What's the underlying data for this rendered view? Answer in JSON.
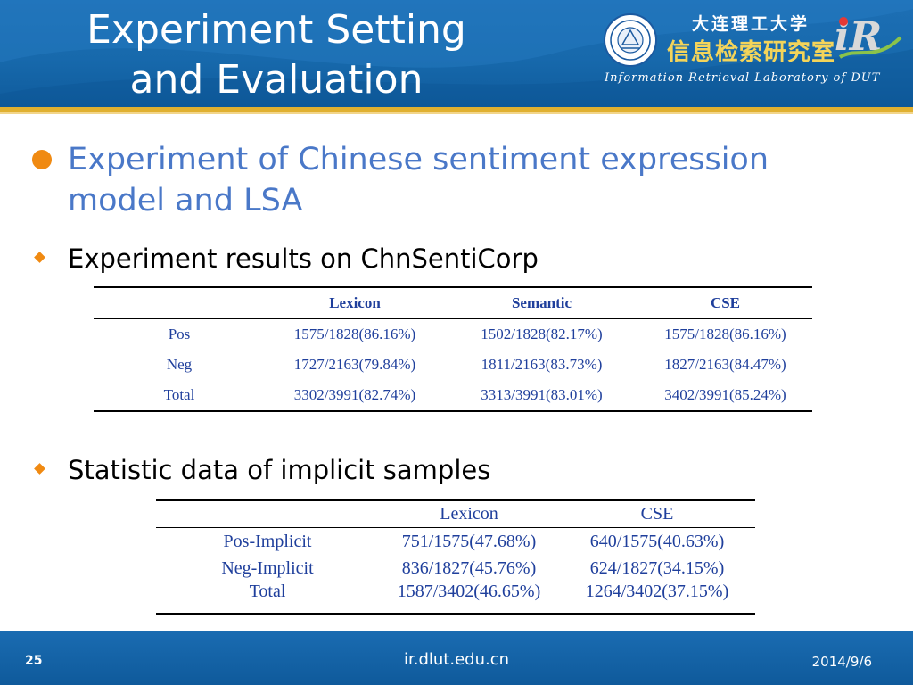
{
  "header": {
    "title_line1": "Experiment Setting",
    "title_line2": "and Evaluation",
    "university": "大连理工大学",
    "lab_cn": "信息检索研究室",
    "lab_en": "Information Retrieval Laboratory of DUT",
    "logo_text": "iR"
  },
  "content": {
    "main_bullet": "Experiment of Chinese sentiment expression model and LSA",
    "sub_bullet_1": "Experiment results on ChnSentiCorp",
    "sub_bullet_2": "Statistic data of implicit samples"
  },
  "table1": {
    "headers": [
      "",
      "Lexicon",
      "Semantic",
      "CSE"
    ],
    "rows": [
      [
        "Pos",
        "1575/1828(86.16%)",
        "1502/1828(82.17%)",
        "1575/1828(86.16%)"
      ],
      [
        "Neg",
        "1727/2163(79.84%)",
        "1811/2163(83.73%)",
        "1827/2163(84.47%)"
      ],
      [
        "Total",
        "3302/3991(82.74%)",
        "3313/3991(83.01%)",
        "3402/3991(85.24%)"
      ]
    ]
  },
  "table2": {
    "headers": [
      "",
      "Lexicon",
      "CSE"
    ],
    "rows": [
      [
        "Pos-Implicit",
        "751/1575(47.68%)",
        "640/1575(40.63%)"
      ],
      [
        "Neg-Implicit",
        "836/1827(45.76%)",
        "624/1827(34.15%)"
      ],
      [
        "Total",
        "1587/3402(46.65%)",
        "1264/3402(37.15%)"
      ]
    ]
  },
  "footer": {
    "page_number": "25",
    "site": "ir.dlut.edu.cn",
    "date": "2014/9/6"
  }
}
